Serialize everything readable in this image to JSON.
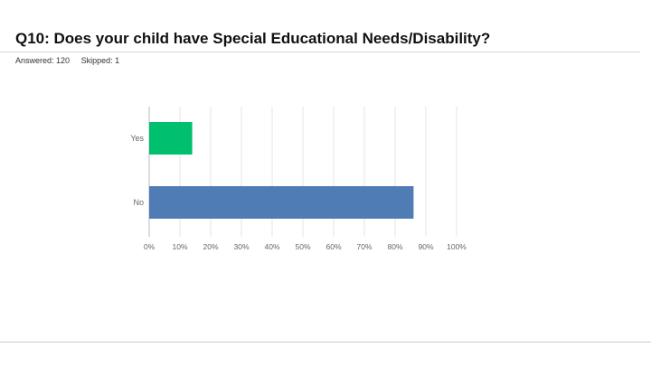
{
  "question": {
    "title": "Q10: Does your child have Special Educational Needs/Disability?",
    "answered": "Answered: 120",
    "skipped": "Skipped: 1"
  },
  "chart_data": {
    "type": "bar",
    "orientation": "horizontal",
    "categories": [
      "Yes",
      "No"
    ],
    "values": [
      14,
      86
    ],
    "colors": [
      "#00bf6f",
      "#507cb6"
    ],
    "xlim": [
      0,
      100
    ],
    "xticks": [
      "0%",
      "10%",
      "20%",
      "30%",
      "40%",
      "50%",
      "60%",
      "70%",
      "80%",
      "90%",
      "100%"
    ],
    "grid": true
  }
}
